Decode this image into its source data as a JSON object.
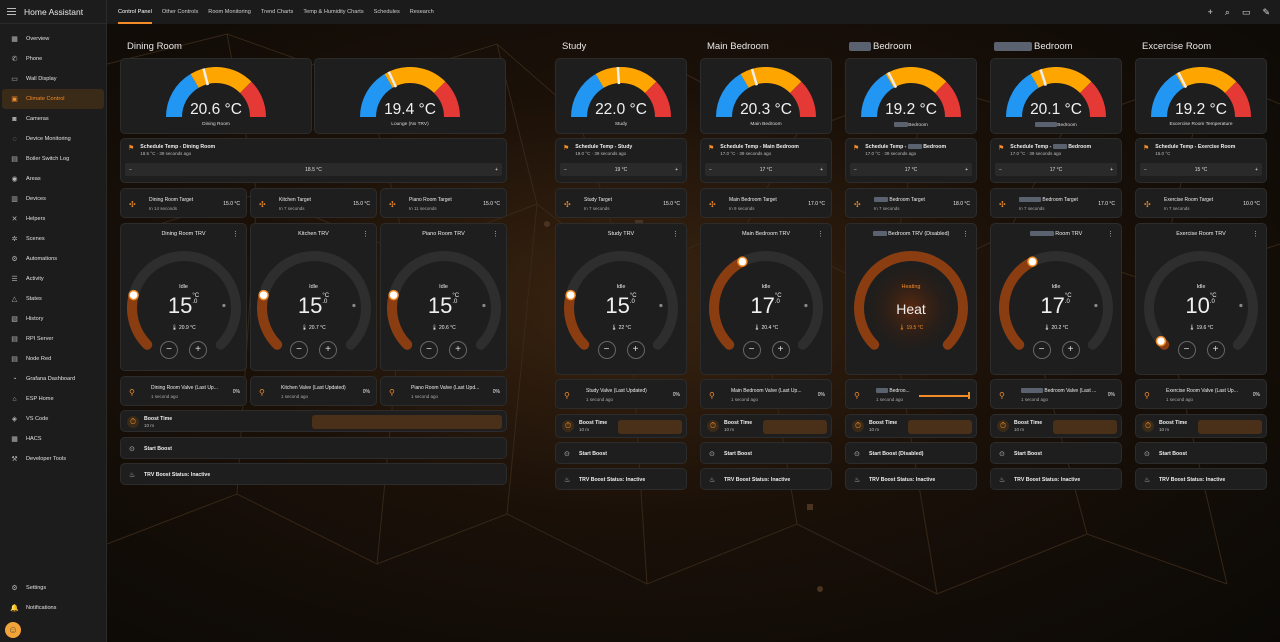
{
  "app_title": "Home Assistant",
  "sidebar": {
    "items": [
      {
        "label": "Overview",
        "icon": "▦"
      },
      {
        "label": "Phone",
        "icon": "✆"
      },
      {
        "label": "Wall Display",
        "icon": "▭"
      },
      {
        "label": "Climate Control",
        "icon": "▣",
        "active": true
      },
      {
        "label": "Cameras",
        "icon": "◙"
      },
      {
        "label": "Device Monitoring",
        "icon": "◌"
      },
      {
        "label": "Boiler Switch Log",
        "icon": "▤"
      },
      {
        "label": "Areas",
        "icon": "◉"
      },
      {
        "label": "Devices",
        "icon": "▥"
      },
      {
        "label": "Helpers",
        "icon": "✕"
      },
      {
        "label": "Scenes",
        "icon": "✲"
      },
      {
        "label": "Automations",
        "icon": "⚙"
      },
      {
        "label": "Activity",
        "icon": "☰"
      },
      {
        "label": "States",
        "icon": "△"
      },
      {
        "label": "History",
        "icon": "▧"
      },
      {
        "label": "RPI Server",
        "icon": "▤"
      },
      {
        "label": "Node Red",
        "icon": "▤"
      },
      {
        "label": "Grafana Dashboard",
        "icon": "◔"
      },
      {
        "label": "ESP Home",
        "icon": "⌂"
      },
      {
        "label": "VS Code",
        "icon": "◈"
      },
      {
        "label": "HACS",
        "icon": "▦"
      },
      {
        "label": "Developer Tools",
        "icon": "⚒"
      }
    ],
    "settings": "Settings",
    "notifications": "Notifications"
  },
  "tabs": [
    "Control Panel",
    "Other Controls",
    "Room Monitoring",
    "Trend Charts",
    "Temp & Humidity Charts",
    "Schedules",
    "Research"
  ],
  "dining": {
    "title": "Dining Room",
    "gauges": [
      {
        "value": "20.6 °C",
        "name": "Dining Room",
        "frac": 0.42
      },
      {
        "value": "19.4 °C",
        "name": "Lounge (No TRV)",
        "frac": 0.36
      }
    ],
    "schedule": {
      "title": "Schedule Temp - Dining Room",
      "sub": "18.5 °C · 39 seconds ago",
      "value": "18.5 °C",
      "minus": "−",
      "plus": "+"
    },
    "targets": [
      {
        "title": "Dining Room Target",
        "sub": "In 14 seconds",
        "value": "15.0 °C"
      },
      {
        "title": "Kitchen Target",
        "sub": "In 7 seconds",
        "value": "15.0 °C"
      },
      {
        "title": "Piano Room Target",
        "sub": "In 11 seconds",
        "value": "15.0 °C"
      }
    ],
    "trvs": [
      {
        "title": "Dining Room TRV",
        "mode": "Idle",
        "temp": "15",
        "dec": ".0",
        "current": "🌡 20.9 °C",
        "frac": 0.22
      },
      {
        "title": "Kitchen TRV",
        "mode": "Idle",
        "temp": "15",
        "dec": ".0",
        "current": "🌡 20.7 °C",
        "frac": 0.22
      },
      {
        "title": "Piano Room TRV",
        "mode": "Idle",
        "temp": "15",
        "dec": ".0",
        "current": "🌡 20.6 °C",
        "frac": 0.22
      }
    ],
    "valves": [
      {
        "title": "Dining Room Valve (Last Up...",
        "sub": "1 second ago",
        "value": "0%"
      },
      {
        "title": "Kitchen Valve (Last Updated)",
        "sub": "1 second ago",
        "value": "0%"
      },
      {
        "title": "Piano Room Valve (Last Upd...",
        "sub": "1 second ago",
        "value": "0%"
      }
    ],
    "boost": {
      "title": "Boost Time",
      "sub": "10 m"
    },
    "start": "Start Boost",
    "status": "TRV Boost Status: Inactive"
  },
  "rooms": [
    {
      "title": "Study",
      "blur": false,
      "gauge_value": "22.0 °C",
      "gauge_name": "Study",
      "gauge_frac": 0.48,
      "sched_title": "Schedule Temp - Study",
      "sched_sub": "19.0 °C · 39 seconds ago",
      "sched_value": "19 °C",
      "target_title": "Study Target",
      "target_sub": "In 7 seconds",
      "target_value": "15.0 °C",
      "trv_title": "Study TRV",
      "mode": "Idle",
      "temp": "15",
      "dec": ".0",
      "current": "🌡 22 °C",
      "frac": 0.22,
      "valve_title": "Study Valve (Last Updated)",
      "valve_sub": "1 second ago",
      "valve_value": "0%",
      "boost_title": "Boost Time",
      "boost_sub": "10 m",
      "start": "Start Boost",
      "status": "TRV Boost Status: Inactive"
    },
    {
      "title": "Main Bedroom",
      "blur": false,
      "gauge_value": "20.3 °C",
      "gauge_name": "Main Bedroom",
      "gauge_frac": 0.41,
      "sched_title": "Schedule Temp - Main Bedroom",
      "sched_sub": "17.0 °C · 39 seconds ago",
      "sched_value": "17 °C",
      "target_title": "Main Bedroom Target",
      "target_sub": "In 9 seconds",
      "target_value": "17.0 °C",
      "trv_title": "Main Bedroom TRV",
      "mode": "Idle",
      "temp": "17",
      "dec": ".0",
      "current": "🌡 20.4 °C",
      "frac": 0.4,
      "valve_title": "Main Bedroom Valve (Last Up...",
      "valve_sub": "1 second ago",
      "valve_value": "0%",
      "boost_title": "Boost Time",
      "boost_sub": "10 m",
      "start": "Start Boost",
      "status": "TRV Boost Status: Inactive"
    },
    {
      "title": "Bedroom",
      "blur": true,
      "gauge_value": "19.2 °C",
      "gauge_name": "Bedroom",
      "gauge_frac": 0.35,
      "sched_title": "Schedule Temp - ",
      "sched_title2": " Bedroom",
      "sched_sub": "17.0 °C · 39 seconds ago",
      "sched_value": "17 °C",
      "target_title": "Bedroom Target",
      "target_sub": "In 7 seconds",
      "target_value": "18.0 °C",
      "trv_title": "Bedroom TRV (Disabled)",
      "heating": true,
      "mode": "Heating",
      "heat_label": "Heat",
      "current": "🌡 19.5 °C",
      "valve_title": "Bedroo...",
      "valve_sub": "1 second ago",
      "valve_value": "",
      "boost_title": "Boost Time",
      "boost_sub": "10 m",
      "start": "Start Boost (Disabled)",
      "status": "TRV Boost Status: Inactive"
    },
    {
      "title": "Bedroom",
      "blur": true,
      "gauge_value": "20.1 °C",
      "gauge_name": "Bedroom",
      "gauge_frac": 0.4,
      "sched_title": "Schedule Temp - ",
      "sched_title2": " Bedroom",
      "sched_sub": "17.0 °C · 39 seconds ago",
      "sched_value": "17 °C",
      "target_title": "Bedroom Target",
      "target_sub": "In 7 seconds",
      "target_value": "17.0 °C",
      "trv_title": "Room TRV",
      "mode": "Idle",
      "temp": "17",
      "dec": ".0",
      "current": "🌡 20.2 °C",
      "frac": 0.4,
      "valve_title": "Bedroom Valve (Last ...",
      "valve_sub": "1 second ago",
      "valve_value": "0%",
      "boost_title": "Boost Time",
      "boost_sub": "10 m",
      "start": "Start Boost",
      "status": "TRV Boost Status: Inactive"
    },
    {
      "title": "Excercise Room",
      "blur": false,
      "gauge_value": "19.2 °C",
      "gauge_name": "Excercise Room Temperature",
      "gauge_frac": 0.35,
      "sched_title": "Schedule Temp - Exercise Room",
      "sched_sub": "15.0 °C",
      "sched_value": "15 °C",
      "target_title": "Exercise Room Target",
      "target_sub": "In 7 seconds",
      "target_value": "10.0 °C",
      "trv_title": "Exercise Room TRV",
      "mode": "Idle",
      "temp": "10",
      "dec": ".0",
      "current": "🌡 19.6 °C",
      "frac": 0.02,
      "valve_title": "Exercise Room Valve (Last Up...",
      "valve_sub": "1 second ago",
      "valve_value": "0%",
      "boost_title": "Boost Time",
      "boost_sub": "10 m",
      "start": "Start Boost",
      "status": "TRV Boost Status: Inactive"
    }
  ],
  "colors": {
    "accent": "#f28c28",
    "gauge_blue": "#2196f3",
    "gauge_yellow": "#ffa500",
    "gauge_red": "#e53935",
    "trv_arc": "#8b3d12"
  }
}
